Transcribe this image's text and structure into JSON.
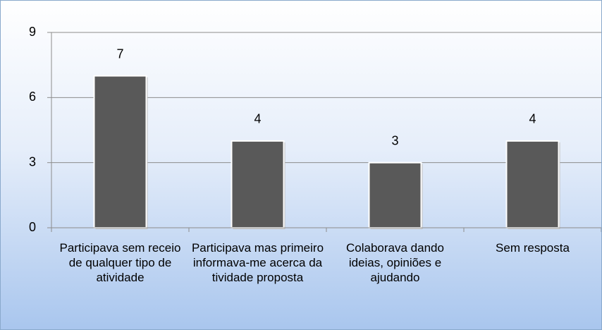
{
  "chart_data": {
    "type": "bar",
    "categories": [
      "Participava sem receio de qualquer tipo de atividade",
      "Participava mas primeiro informava-me acerca da tividade proposta",
      "Colaborava dando ideias, opiniões e ajudando",
      "Sem resposta"
    ],
    "values": [
      7,
      4,
      3,
      4
    ],
    "color": "#595959",
    "ylim": [
      0,
      9
    ],
    "yticks": [
      0,
      3,
      6,
      9
    ],
    "grid": true
  }
}
